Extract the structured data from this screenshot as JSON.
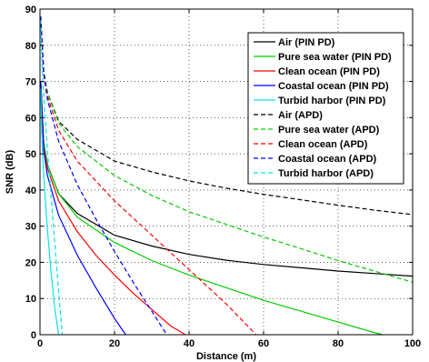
{
  "chart_data": {
    "type": "line",
    "title": "",
    "xlabel": "Distance (m)",
    "ylabel": "SNR (dB)",
    "xlim": [
      0,
      100
    ],
    "ylim": [
      0,
      90
    ],
    "xticks": [
      "0",
      "20",
      "40",
      "60",
      "80",
      "100"
    ],
    "yticks": [
      "0",
      "10",
      "20",
      "30",
      "40",
      "50",
      "60",
      "70",
      "80",
      "90"
    ],
    "grid": true,
    "legend_position": "top-right",
    "series": [
      {
        "name": "Air (PIN PD)",
        "color": "#000000",
        "dash": "solid",
        "x": [
          0.2,
          1,
          2,
          5,
          10,
          20,
          30,
          40,
          50,
          60,
          70,
          80,
          90,
          100
        ],
        "y": [
          70,
          53,
          47,
          39,
          33.5,
          27.5,
          24.5,
          22.2,
          20.6,
          19.4,
          18.5,
          17.6,
          16.9,
          16.2
        ]
      },
      {
        "name": "Pure sea water (PIN PD)",
        "color": "#00cc00",
        "dash": "solid",
        "x": [
          0.2,
          1,
          2,
          5,
          10,
          20,
          30,
          40,
          50,
          60,
          70,
          80,
          90,
          92
        ],
        "y": [
          70,
          53,
          47,
          39,
          32.5,
          25.5,
          20.5,
          16.5,
          13,
          9.5,
          6.5,
          3.5,
          0.5,
          0
        ]
      },
      {
        "name": "Clean ocean (PIN PD)",
        "color": "#ff0000",
        "dash": "solid",
        "x": [
          0.2,
          1,
          2,
          5,
          10,
          15,
          20,
          25,
          30,
          35,
          39
        ],
        "y": [
          70,
          52,
          46,
          37,
          28.5,
          22,
          16.5,
          11.5,
          7,
          2.5,
          0
        ]
      },
      {
        "name": "Coastal ocean (PIN PD)",
        "color": "#0000ff",
        "dash": "solid",
        "x": [
          0.2,
          1,
          2,
          5,
          10,
          15,
          20,
          23
        ],
        "y": [
          70,
          51,
          44,
          33,
          22,
          13,
          4.5,
          0
        ]
      },
      {
        "name": "Turbid harbor (PIN PD)",
        "color": "#00e5e5",
        "dash": "solid",
        "x": [
          0.2,
          0.5,
          1,
          2,
          3,
          4,
          5
        ],
        "y": [
          68,
          55,
          44,
          29,
          17,
          7,
          0
        ]
      },
      {
        "name": "Air (APD)",
        "color": "#000000",
        "dash": "dashed",
        "x": [
          0.2,
          1,
          2,
          5,
          10,
          20,
          30,
          40,
          50,
          60,
          70,
          80,
          90,
          100
        ],
        "y": [
          88,
          73,
          67,
          59,
          54,
          48,
          45,
          42.5,
          40.5,
          38.8,
          37.3,
          35.8,
          34.4,
          33.2
        ]
      },
      {
        "name": "Pure sea water (APD)",
        "color": "#00cc00",
        "dash": "dashed",
        "x": [
          0.2,
          1,
          2,
          5,
          10,
          20,
          30,
          40,
          50,
          60,
          70,
          80,
          90,
          100
        ],
        "y": [
          88,
          73,
          67,
          58.5,
          52,
          44,
          38.5,
          34,
          30.5,
          27,
          23.8,
          20.5,
          17.5,
          14.5
        ]
      },
      {
        "name": "Clean ocean (APD)",
        "color": "#ff0000",
        "dash": "dashed",
        "x": [
          0.2,
          1,
          2,
          5,
          10,
          20,
          30,
          40,
          50,
          58
        ],
        "y": [
          88,
          72.5,
          66,
          56.5,
          48,
          37,
          27.5,
          18,
          8.5,
          0
        ]
      },
      {
        "name": "Coastal ocean (APD)",
        "color": "#0000ff",
        "dash": "dashed",
        "x": [
          0.2,
          1,
          2,
          5,
          10,
          15,
          20,
          25,
          30,
          34
        ],
        "y": [
          88,
          72,
          65,
          53.5,
          41.5,
          32,
          23,
          14.5,
          6.5,
          0
        ]
      },
      {
        "name": "Turbid harbor (APD)",
        "color": "#00e5e5",
        "dash": "dashed",
        "x": [
          0.2,
          0.5,
          1,
          2,
          3,
          4,
          5,
          6
        ],
        "y": [
          87,
          76,
          66,
          51,
          38,
          25,
          12,
          0
        ]
      }
    ]
  }
}
